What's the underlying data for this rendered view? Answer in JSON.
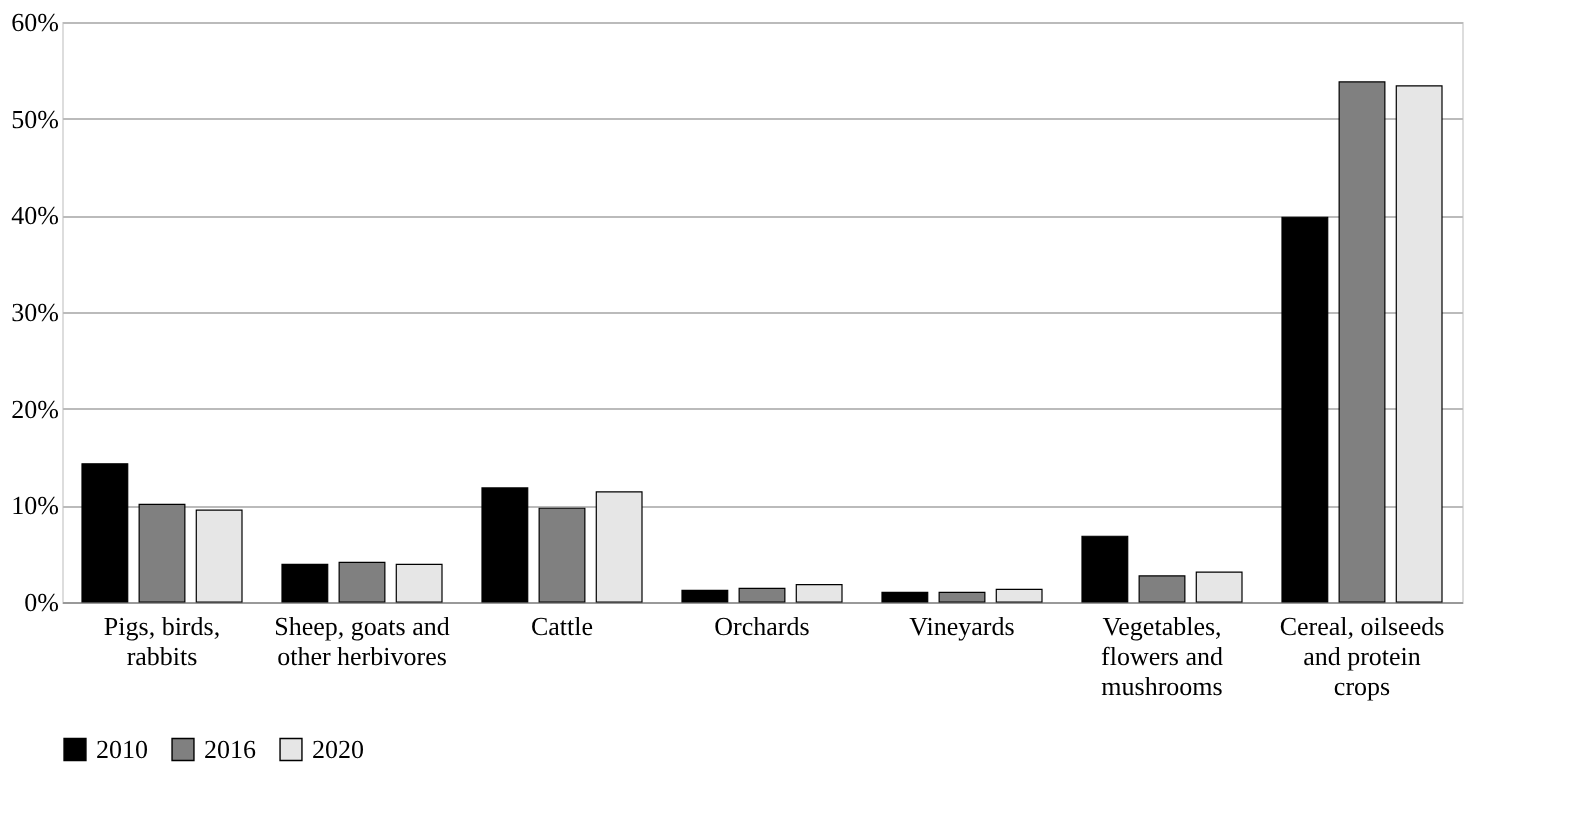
{
  "chart_data": {
    "type": "bar",
    "categories": [
      "Pigs, birds, rabbits",
      "Sheep, goats and other herbivores",
      "Cattle",
      "Orchards",
      "Vineyards",
      "Vegetables, flowers and mushrooms",
      "Cereal, oilseeds and protein crops"
    ],
    "series": [
      {
        "name": "2010",
        "color": "#000000",
        "values": [
          14.3,
          3.9,
          11.8,
          1.2,
          1.0,
          6.8,
          39.8
        ]
      },
      {
        "name": "2016",
        "color": "#808080",
        "values": [
          10.1,
          4.1,
          9.7,
          1.4,
          1.0,
          2.7,
          53.8
        ]
      },
      {
        "name": "2020",
        "color": "#e6e6e6",
        "values": [
          9.5,
          3.9,
          11.4,
          1.8,
          1.3,
          3.1,
          53.4
        ]
      }
    ],
    "ylim": [
      0,
      60
    ],
    "yticks": [
      {
        "value": 0,
        "label": "0%"
      },
      {
        "value": 10,
        "label": "10%"
      },
      {
        "value": 20,
        "label": "20%"
      },
      {
        "value": 30,
        "label": "30%"
      },
      {
        "value": 40,
        "label": "40%"
      },
      {
        "value": 50,
        "label": "50%"
      },
      {
        "value": 60,
        "label": "60%"
      }
    ],
    "grid": "y",
    "legend": "bottom"
  }
}
